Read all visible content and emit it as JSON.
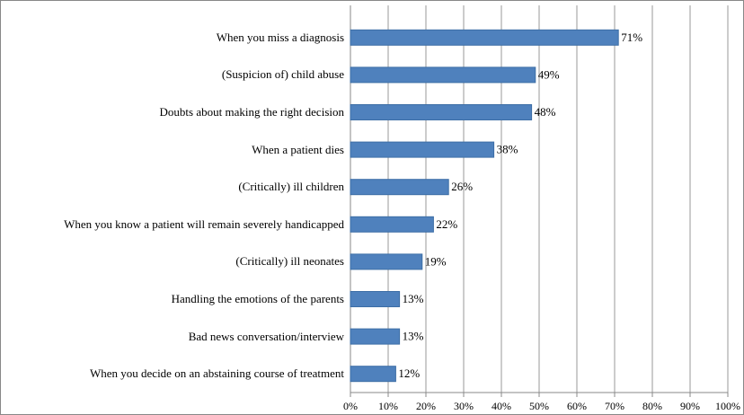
{
  "chart_data": {
    "type": "bar",
    "orientation": "horizontal",
    "categories": [
      "When you miss a diagnosis",
      "(Suspicion of) child abuse",
      "Doubts about making the right decision",
      "When a patient dies",
      "(Critically) ill children",
      "When you know a patient will remain severely handicapped",
      "(Critically) ill neonates",
      "Handling the emotions of the parents",
      "Bad news conversation/interview",
      "When you decide on an abstaining course of treatment"
    ],
    "values": [
      71,
      49,
      48,
      38,
      26,
      22,
      19,
      13,
      13,
      12
    ],
    "value_labels": [
      "71%",
      "49%",
      "48%",
      "38%",
      "26%",
      "22%",
      "19%",
      "13%",
      "13%",
      "12%"
    ],
    "color": "#4f81bd",
    "xlim": [
      0,
      100
    ],
    "xticks": [
      {
        "value": 0,
        "label": "0%"
      },
      {
        "value": 10,
        "label": "10%"
      },
      {
        "value": 20,
        "label": "20%"
      },
      {
        "value": 30,
        "label": "30%"
      },
      {
        "value": 40,
        "label": "40%"
      },
      {
        "value": 50,
        "label": "50%"
      },
      {
        "value": 60,
        "label": "60%"
      },
      {
        "value": 70,
        "label": "70%"
      },
      {
        "value": 80,
        "label": "80%"
      },
      {
        "value": 90,
        "label": "90%"
      },
      {
        "value": 100,
        "label": "100%"
      }
    ],
    "grid": true
  }
}
